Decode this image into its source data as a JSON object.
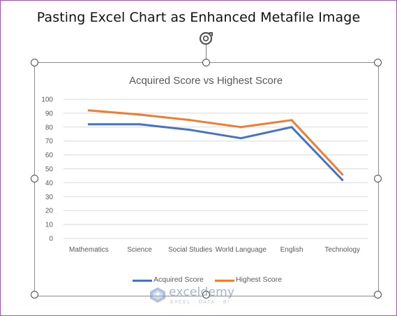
{
  "page": {
    "title": "Pasting Excel Chart as Enhanced Metafile Image"
  },
  "watermark": {
    "name": "exceldemy",
    "tagline": "EXCEL · DATA · BI"
  },
  "colors": {
    "acquired": "#4472c4",
    "highest": "#ed7d31",
    "grid": "#d9d9d9",
    "axis_text": "#595959",
    "frame": "#b04fc8"
  },
  "icons": {
    "rotate": "rotate-handle-icon",
    "logo": "exceldemy-logo-icon"
  },
  "chart_data": {
    "type": "line",
    "title": "Acquired Score vs Highest Score",
    "xlabel": "",
    "ylabel": "",
    "categories": [
      "Mathematics",
      "Science",
      "Social Studies",
      "World Language",
      "English",
      "Technology"
    ],
    "series": [
      {
        "name": "Acquired Score",
        "values": [
          82,
          82,
          78,
          72,
          80,
          42
        ]
      },
      {
        "name": "Highest Score",
        "values": [
          92,
          89,
          85,
          80,
          85,
          46
        ]
      }
    ],
    "ylim": [
      0,
      100
    ],
    "yticks": [
      "0",
      "10",
      "20",
      "30",
      "40",
      "50",
      "60",
      "70",
      "80",
      "90",
      "100"
    ],
    "grid": true,
    "legend": "bottom"
  }
}
